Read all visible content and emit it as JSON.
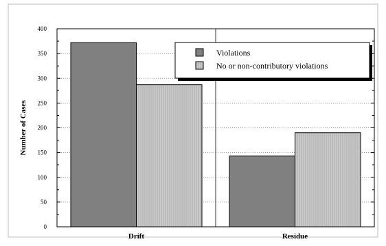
{
  "chart_data": {
    "type": "bar",
    "title": "",
    "xlabel": "",
    "ylabel": "Number of Cases",
    "ylim": [
      0,
      400
    ],
    "yticks": [
      0,
      50,
      100,
      150,
      200,
      250,
      300,
      350,
      400
    ],
    "ytick_labels": [
      "0",
      "50",
      "100",
      "150",
      "200",
      "250",
      "300",
      "350",
      "400"
    ],
    "categories": [
      "Drift",
      "Residue"
    ],
    "series": [
      {
        "name": "Violations",
        "values": [
          372,
          143
        ],
        "color": "#808080"
      },
      {
        "name": "No or non-contributory violations",
        "values": [
          287,
          190
        ],
        "color": "#c4c4c4"
      }
    ],
    "grid": {
      "horizontal_dotted": true,
      "vertical_divider": true
    },
    "legend": {
      "placement": "top-right"
    }
  }
}
